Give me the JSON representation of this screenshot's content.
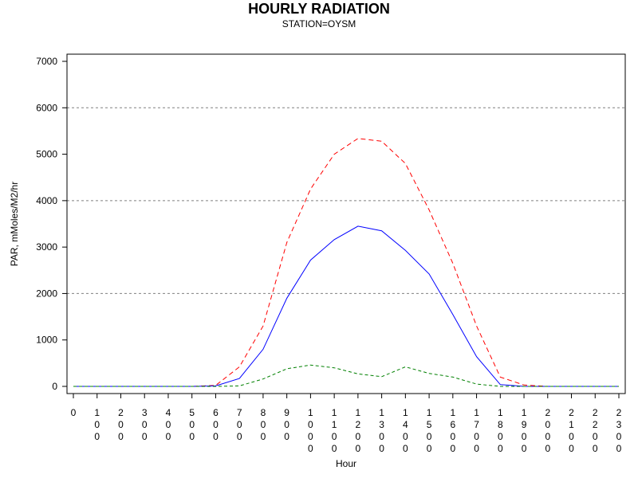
{
  "chart_data": {
    "type": "line",
    "title": "HOURLY RADIATION",
    "subtitle": "STATION=OYSM",
    "xlabel": "Hour",
    "ylabel": "PAR, mMoles/M2/hr",
    "ylim": [
      0,
      7000
    ],
    "yticks": [
      0,
      1000,
      2000,
      3000,
      4000,
      5000,
      6000,
      7000
    ],
    "y_gridlines": [
      2000,
      4000,
      6000
    ],
    "x": [
      0,
      100,
      200,
      300,
      400,
      500,
      600,
      700,
      800,
      900,
      1000,
      1100,
      1200,
      1300,
      1400,
      1500,
      1600,
      1700,
      1800,
      1900,
      2000,
      2100,
      2200,
      2300
    ],
    "xtick_labels": [
      "0",
      "100",
      "200",
      "300",
      "400",
      "500",
      "600",
      "700",
      "800",
      "900",
      "1000",
      "1100",
      "1200",
      "1300",
      "1400",
      "1500",
      "1600",
      "1700",
      "1800",
      "1900",
      "2000",
      "2100",
      "2200",
      "2300"
    ],
    "series": [
      {
        "style": "dashed",
        "color": "#ff0000",
        "values": [
          0,
          0,
          0,
          0,
          0,
          0,
          20,
          420,
          1300,
          3100,
          4250,
          5000,
          5340,
          5280,
          4800,
          3800,
          2650,
          1300,
          200,
          30,
          0,
          0,
          0,
          0
        ]
      },
      {
        "style": "solid",
        "color": "#0000ff",
        "values": [
          0,
          0,
          0,
          0,
          0,
          0,
          10,
          170,
          800,
          1900,
          2720,
          3160,
          3450,
          3350,
          2930,
          2420,
          1550,
          640,
          40,
          0,
          0,
          0,
          0,
          0
        ]
      },
      {
        "style": "dashed-short",
        "color": "#008000",
        "values": [
          0,
          0,
          0,
          0,
          0,
          0,
          0,
          10,
          160,
          380,
          460,
          400,
          270,
          210,
          420,
          280,
          200,
          50,
          0,
          0,
          0,
          0,
          0,
          0
        ]
      }
    ]
  }
}
